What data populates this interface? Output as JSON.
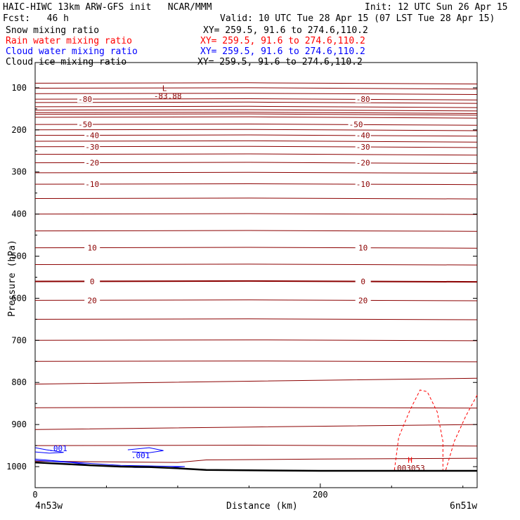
{
  "header": {
    "title": "HAIC-HIWC 13km ARW-GFS init   NCAR/MMM",
    "init": "Init: 12 UTC Sun 26 Apr 15",
    "fcst": "Fcst:   46 h",
    "valid": "Valid: 10 UTC Tue 28 Apr 15 (07 LST Tue 28 Apr 15)"
  },
  "fields": [
    {
      "name": "Snow mixing ratio",
      "xy": "XY= 259.5, 91.6 to 274.6,110.2",
      "color": "#000000"
    },
    {
      "name": "Rain water mixing ratio",
      "xy": "XY= 259.5, 91.6 to 274.6,110.2",
      "color": "#ff0000"
    },
    {
      "name": "Cloud water mixing ratio",
      "xy": "XY= 259.5, 91.6 to 274.6,110.2",
      "color": "#0000ff"
    },
    {
      "name": "Cloud ice mixing ratio",
      "xy": "XY= 259.5, 91.6 to 274.6,110.2",
      "color": "#000000"
    }
  ],
  "chart_data": {
    "type": "line",
    "ylabel": "Pressure (hPa)",
    "xlabel": "Distance (km)",
    "x_start_label": "4n53w",
    "x_end_label": "6n51w",
    "xlim": [
      0,
      310
    ],
    "ylim": [
      1050,
      40
    ],
    "x_ticks": [
      0,
      200
    ],
    "y_ticks": [
      100,
      200,
      300,
      400,
      500,
      600,
      700,
      800,
      900,
      1000
    ],
    "temperature_contour_color": "#8b0000",
    "temperature_contours": [
      {
        "label": "-80",
        "p": 127,
        "labels_at_km": [
          35,
          230
        ]
      },
      {
        "label": "-50",
        "p": 187,
        "labels_at_km": [
          35,
          225
        ]
      },
      {
        "label": "-40",
        "p": 213,
        "labels_at_km": [
          40,
          230
        ]
      },
      {
        "label": "-30",
        "p": 240,
        "labels_at_km": [
          40,
          230
        ]
      },
      {
        "label": "-20",
        "p": 278,
        "labels_at_km": [
          40,
          230
        ]
      },
      {
        "label": "-10",
        "p": 329,
        "labels_at_km": [
          40,
          230
        ]
      },
      {
        "label": "0",
        "p": 560,
        "labels_at_km": [
          40,
          230
        ]
      },
      {
        "label": "10",
        "p": 480,
        "labels_at_km": [
          40,
          230
        ]
      },
      {
        "label": "20",
        "p": 605,
        "labels_at_km": [
          40,
          230
        ]
      }
    ],
    "temperature_minimum": {
      "label": "L",
      "value": "-83.88",
      "x": 93,
      "p": 108
    },
    "rain_maximum": {
      "label": "H",
      "value": ".003053",
      "x": 262,
      "p": 993
    },
    "cloud_water_labels": [
      {
        "value": ".001",
        "x": 16,
        "p": 963
      },
      {
        "value": ".001",
        "x": 74,
        "p": 980
      }
    ]
  }
}
